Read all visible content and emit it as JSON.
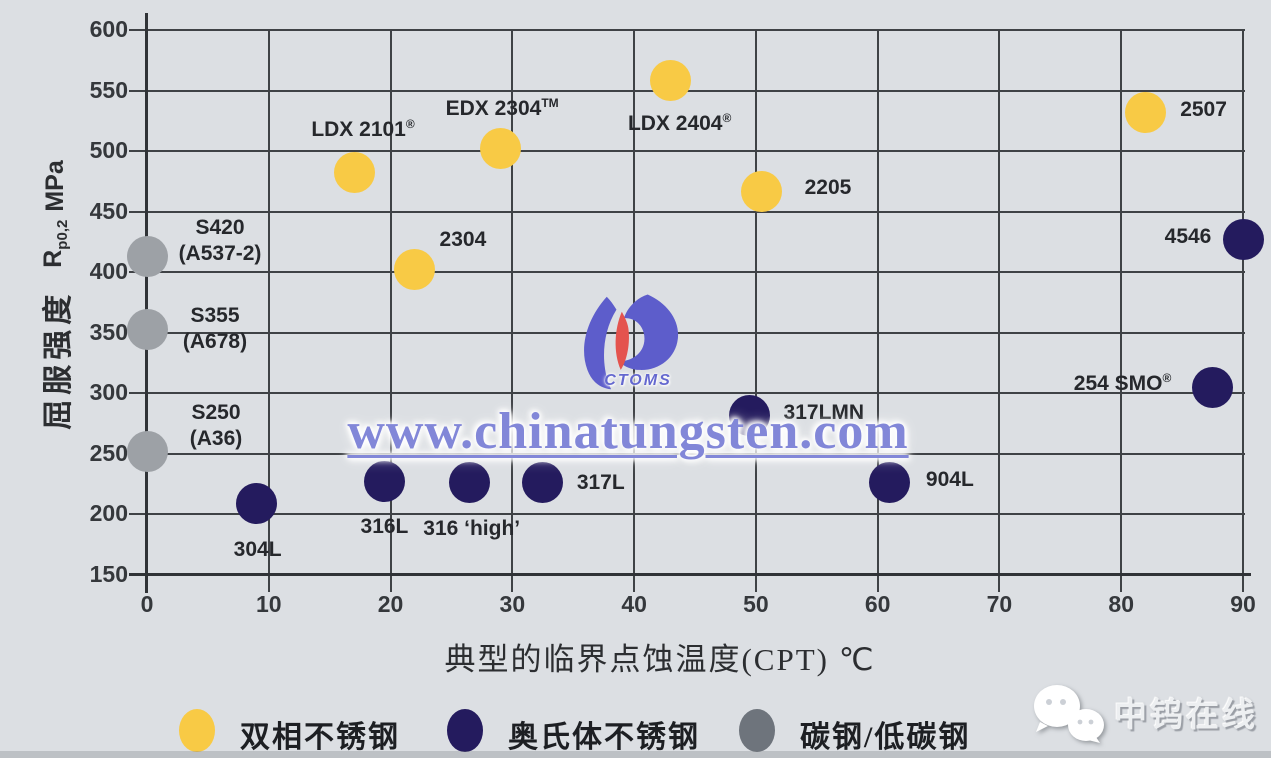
{
  "watermark": {
    "text": "www.chinatungsten.com"
  },
  "center_logo": {
    "text": "CTOMS"
  },
  "branding": {
    "name": "中钨在线"
  },
  "chart_data": {
    "type": "scatter",
    "title": "",
    "xlabel": "典型的临界点蚀温度(CPT) ℃",
    "ylabel_cn": "屈服强度",
    "ylabel_r": "R",
    "ylabel_sub": "p0,2",
    "ylabel_unit": "MPa",
    "xlim": [
      0,
      90
    ],
    "ylim": [
      150,
      600
    ],
    "xticks": [
      0,
      10,
      20,
      30,
      40,
      50,
      60,
      70,
      80,
      90
    ],
    "yticks": [
      150,
      200,
      250,
      300,
      350,
      400,
      450,
      500,
      550,
      600
    ],
    "grid": true,
    "legend_position": "bottom",
    "series": [
      {
        "name": "双相不锈钢",
        "color": "#f8ca45",
        "points": [
          {
            "label": "LDX 2101",
            "sup": "®",
            "x": 17,
            "y": 482,
            "dx": 9,
            "dy": -46
          },
          {
            "label": "2304",
            "sup": "",
            "x": 22,
            "y": 402,
            "dx": 48,
            "dy": -30
          },
          {
            "label": "EDX 2304",
            "sup": "TM",
            "x": 29,
            "y": 502,
            "dx": 2,
            "dy": -43
          },
          {
            "label": "LDX 2404",
            "sup": "®",
            "x": 43,
            "y": 558,
            "dx": 9,
            "dy": 40
          },
          {
            "label": "2205",
            "sup": "",
            "x": 50.5,
            "y": 467,
            "dx": 66,
            "dy": -3
          },
          {
            "label": "2507",
            "sup": "",
            "x": 82,
            "y": 532,
            "dx": 58,
            "dy": -2
          }
        ]
      },
      {
        "name": "奥氏体不锈钢",
        "color": "#241b5e",
        "points": [
          {
            "label": "304L",
            "sup": "",
            "x": 9,
            "y": 209,
            "dx": 1,
            "dy": 46
          },
          {
            "label": "316L",
            "sup": "",
            "x": 19.5,
            "y": 227,
            "dx": 0,
            "dy": 45
          },
          {
            "label": "316 ‘high’",
            "sup": "",
            "x": 26.5,
            "y": 226,
            "dx": 2,
            "dy": 46
          },
          {
            "label": "317L",
            "sup": "",
            "x": 32.5,
            "y": 226,
            "dx": 58,
            "dy": 0
          },
          {
            "label": "317LMN",
            "sup": "",
            "x": 49.5,
            "y": 282,
            "dx": 74,
            "dy": -2
          },
          {
            "label": "904L",
            "sup": "",
            "x": 61,
            "y": 226,
            "dx": 60,
            "dy": -3
          },
          {
            "label": "4546",
            "sup": "",
            "x": 90,
            "y": 427,
            "dx": -55,
            "dy": -3
          },
          {
            "label": "254 SMO",
            "sup": "®",
            "x": 87.5,
            "y": 305,
            "dx": -90,
            "dy": -6
          }
        ]
      },
      {
        "name": "碳钢/低碳钢",
        "color": "#9da1a6",
        "points": [
          {
            "label": "S420\n(A537-2)",
            "sup": "",
            "x": 0,
            "y": 413,
            "dx": 73,
            "dy": -15
          },
          {
            "label": "S355\n(A678)",
            "sup": "",
            "x": 0,
            "y": 353,
            "dx": 68,
            "dy": 0
          },
          {
            "label": "S250\n(A36)",
            "sup": "",
            "x": 0,
            "y": 252,
            "dx": 69,
            "dy": -25
          }
        ]
      }
    ]
  },
  "legend": {
    "items": [
      {
        "label": "双相不锈钢",
        "color": "#f8ca45"
      },
      {
        "label": "奥氏体不锈钢",
        "color": "#241b5e"
      },
      {
        "label": "碳钢/低碳钢",
        "color": "#6e747c"
      }
    ]
  }
}
